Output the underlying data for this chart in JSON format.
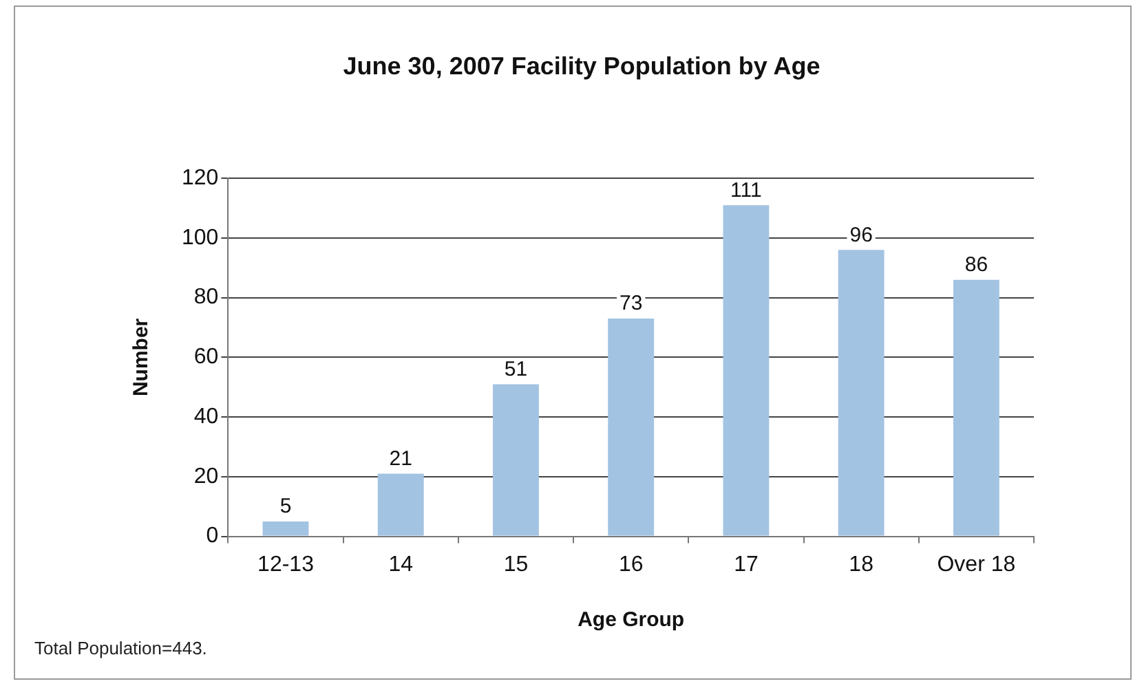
{
  "chart_data": {
    "type": "bar",
    "title": "June 30, 2007 Facility Population by Age",
    "xlabel": "Age Group",
    "ylabel": "Number",
    "categories": [
      "12-13",
      "14",
      "15",
      "16",
      "17",
      "18",
      "Over 18"
    ],
    "values": [
      5,
      21,
      51,
      73,
      111,
      96,
      86
    ],
    "color": "#a3c3e2",
    "ylim": [
      0,
      120
    ],
    "yticks": [
      0,
      20,
      40,
      60,
      80,
      100,
      120
    ],
    "grid": "y",
    "data_labels": true,
    "annotations": [
      "Total Population=443."
    ]
  }
}
